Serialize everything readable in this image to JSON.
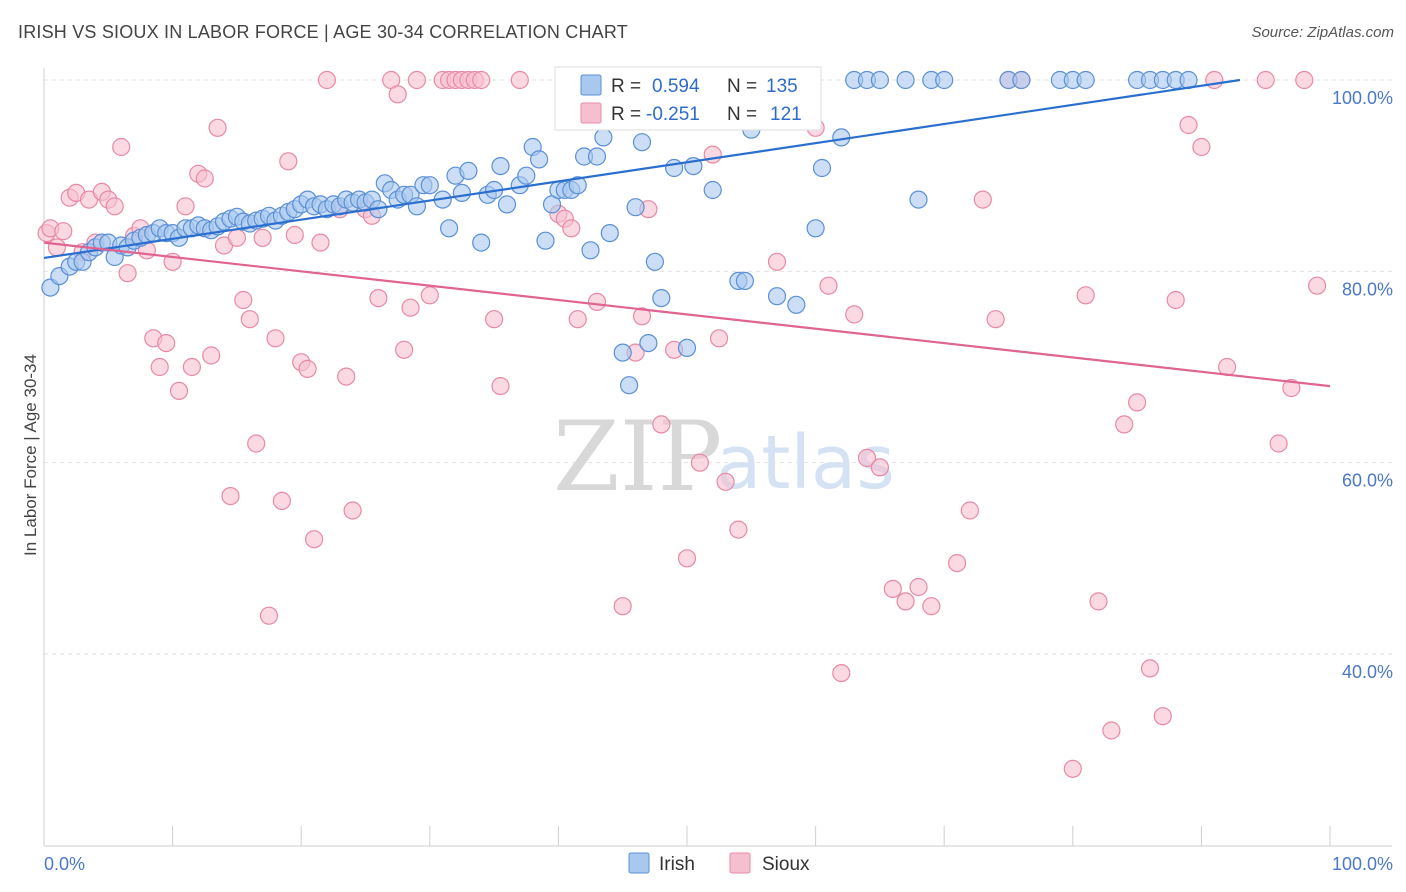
{
  "title": "IRISH VS SIOUX IN LABOR FORCE | AGE 30-34 CORRELATION CHART",
  "source": "Source: ZipAtlas.com",
  "watermark": {
    "zip": "ZIP",
    "atlas": "atlas"
  },
  "colors": {
    "irish_fill": "#a9c8ef",
    "irish_stroke": "#5b8fd6",
    "irish_line": "#2a6fcf",
    "sioux_fill": "#f6bfd0",
    "sioux_stroke": "#e889a6",
    "sioux_line": "#e0648f",
    "tick_text": "#4a78c8",
    "grid": "#e2e2e2"
  },
  "stats": [
    {
      "r_label": "R =",
      "r_value": "0.594",
      "n_label": "N =",
      "n_value": "135"
    },
    {
      "r_label": "R =",
      "r_value": "-0.251",
      "n_label": "N =",
      "n_value": "121"
    }
  ],
  "chart_data": {
    "type": "scatter",
    "ylabel": "In Labor Force | Age 30-34",
    "xlabel": "",
    "x_tick_labels": [
      "0.0%",
      "100.0%"
    ],
    "y_tick_labels": [
      "100.0%",
      "80.0%",
      "60.0%",
      "40.0%"
    ],
    "xlim": [
      0,
      100
    ],
    "ylim": [
      20,
      101.5
    ],
    "grid": true,
    "legend_placement": "bottom-center",
    "series": [
      {
        "name": "Irish",
        "trend": [
          [
            0,
            81.4
          ],
          [
            93,
            100
          ]
        ],
        "points": [
          [
            0.5,
            78.3
          ],
          [
            1.2,
            79.5
          ],
          [
            2,
            80.5
          ],
          [
            2.5,
            81
          ],
          [
            3,
            81
          ],
          [
            3.5,
            82
          ],
          [
            4,
            82.5
          ],
          [
            4.5,
            83
          ],
          [
            5,
            83
          ],
          [
            5.5,
            81.5
          ],
          [
            6,
            82.7
          ],
          [
            6.5,
            82.5
          ],
          [
            7,
            83.2
          ],
          [
            7.5,
            83.5
          ],
          [
            8,
            83.8
          ],
          [
            8.5,
            84
          ],
          [
            9,
            84.5
          ],
          [
            9.5,
            84
          ],
          [
            10,
            84
          ],
          [
            10.5,
            83.5
          ],
          [
            11,
            84.5
          ],
          [
            11.5,
            84.5
          ],
          [
            12,
            84.8
          ],
          [
            12.5,
            84.5
          ],
          [
            13,
            84.3
          ],
          [
            13.5,
            84.7
          ],
          [
            14,
            85.2
          ],
          [
            14.5,
            85.5
          ],
          [
            15,
            85.7
          ],
          [
            15.5,
            85.2
          ],
          [
            16,
            85
          ],
          [
            16.5,
            85.3
          ],
          [
            17,
            85.5
          ],
          [
            17.5,
            85.8
          ],
          [
            18,
            85.3
          ],
          [
            18.5,
            85.8
          ],
          [
            19,
            86.2
          ],
          [
            19.5,
            86.5
          ],
          [
            20,
            87
          ],
          [
            20.5,
            87.5
          ],
          [
            21,
            86.8
          ],
          [
            21.5,
            87
          ],
          [
            22,
            86.5
          ],
          [
            22.5,
            87
          ],
          [
            23,
            86.8
          ],
          [
            23.5,
            87.5
          ],
          [
            24,
            87.2
          ],
          [
            24.5,
            87.5
          ],
          [
            25,
            87.2
          ],
          [
            25.5,
            87.5
          ],
          [
            26,
            86.5
          ],
          [
            26.5,
            89.2
          ],
          [
            27,
            88.5
          ],
          [
            27.5,
            87.5
          ],
          [
            28,
            88
          ],
          [
            28.5,
            88
          ],
          [
            29,
            86.8
          ],
          [
            29.5,
            89
          ],
          [
            30,
            89
          ],
          [
            31,
            87.5
          ],
          [
            31.5,
            84.5
          ],
          [
            32,
            90
          ],
          [
            32.5,
            88.2
          ],
          [
            33,
            90.5
          ],
          [
            34,
            83
          ],
          [
            34.5,
            88
          ],
          [
            35,
            88.5
          ],
          [
            35.5,
            91
          ],
          [
            36,
            87
          ],
          [
            37,
            89
          ],
          [
            37.5,
            90
          ],
          [
            38,
            93
          ],
          [
            38.5,
            91.7
          ],
          [
            39,
            83.2
          ],
          [
            39.5,
            87
          ],
          [
            40,
            88.5
          ],
          [
            40.5,
            88.5
          ],
          [
            41,
            88.5
          ],
          [
            41.5,
            89
          ],
          [
            42,
            92
          ],
          [
            42.5,
            82.2
          ],
          [
            43,
            92
          ],
          [
            43.5,
            94
          ],
          [
            44,
            84
          ],
          [
            45,
            71.5
          ],
          [
            45.5,
            68.1
          ],
          [
            46,
            86.7
          ],
          [
            46.5,
            93.5
          ],
          [
            47,
            72.5
          ],
          [
            47.5,
            81
          ],
          [
            48,
            77.2
          ],
          [
            49,
            90.8
          ],
          [
            50,
            72
          ],
          [
            50.5,
            91
          ],
          [
            52,
            88.5
          ],
          [
            54,
            79
          ],
          [
            54.5,
            79
          ],
          [
            55,
            94.8
          ],
          [
            57,
            77.4
          ],
          [
            58.5,
            76.5
          ],
          [
            60,
            84.5
          ],
          [
            60.5,
            90.8
          ],
          [
            62,
            94
          ],
          [
            63,
            100
          ],
          [
            64,
            100
          ],
          [
            65,
            100
          ],
          [
            67,
            100
          ],
          [
            68,
            87.5
          ],
          [
            69,
            100
          ],
          [
            70,
            100
          ],
          [
            75,
            100
          ],
          [
            76,
            100
          ],
          [
            79,
            100
          ],
          [
            80,
            100
          ],
          [
            81,
            100
          ],
          [
            85,
            100
          ],
          [
            86,
            100
          ],
          [
            87,
            100
          ],
          [
            88,
            100
          ],
          [
            89,
            100
          ]
        ]
      },
      {
        "name": "Sioux",
        "trend": [
          [
            0,
            83
          ],
          [
            100,
            68
          ]
        ],
        "points": [
          [
            0.2,
            84
          ],
          [
            0.5,
            84.5
          ],
          [
            1,
            82.5
          ],
          [
            1.5,
            84.2
          ],
          [
            2,
            87.7
          ],
          [
            2.5,
            88.2
          ],
          [
            3,
            82
          ],
          [
            3.5,
            87.5
          ],
          [
            4,
            83
          ],
          [
            4.5,
            88.3
          ],
          [
            5,
            87.5
          ],
          [
            5.5,
            86.8
          ],
          [
            6,
            93
          ],
          [
            6.5,
            79.8
          ],
          [
            7,
            83.7
          ],
          [
            7.5,
            84.5
          ],
          [
            8,
            82.2
          ],
          [
            8.5,
            73
          ],
          [
            9,
            70
          ],
          [
            9.5,
            72.5
          ],
          [
            10,
            81
          ],
          [
            10.5,
            67.5
          ],
          [
            11,
            86.8
          ],
          [
            11.5,
            70
          ],
          [
            12,
            90.2
          ],
          [
            12.5,
            89.7
          ],
          [
            13,
            71.2
          ],
          [
            13.5,
            95
          ],
          [
            14,
            82.7
          ],
          [
            14.5,
            56.5
          ],
          [
            15,
            83.5
          ],
          [
            15.5,
            77
          ],
          [
            16,
            75
          ],
          [
            16.5,
            62
          ],
          [
            17,
            83.5
          ],
          [
            17.5,
            44
          ],
          [
            18,
            73
          ],
          [
            18.5,
            56
          ],
          [
            19,
            91.5
          ],
          [
            19.5,
            83.8
          ],
          [
            20,
            70.5
          ],
          [
            20.5,
            69.8
          ],
          [
            21,
            52
          ],
          [
            21.5,
            83
          ],
          [
            22,
            100
          ],
          [
            23,
            86.5
          ],
          [
            23.5,
            69
          ],
          [
            24,
            55
          ],
          [
            25,
            86.5
          ],
          [
            25.5,
            85.8
          ],
          [
            26,
            77.2
          ],
          [
            27,
            100
          ],
          [
            27.5,
            98.5
          ],
          [
            28,
            71.8
          ],
          [
            28.5,
            76.2
          ],
          [
            29,
            100
          ],
          [
            30,
            77.5
          ],
          [
            31,
            100
          ],
          [
            31.5,
            100
          ],
          [
            32,
            100
          ],
          [
            32.5,
            100
          ],
          [
            33,
            100
          ],
          [
            33.5,
            100
          ],
          [
            34,
            100
          ],
          [
            35,
            75
          ],
          [
            35.5,
            68
          ],
          [
            37,
            100
          ],
          [
            40,
            86
          ],
          [
            40.5,
            85.5
          ],
          [
            41,
            84.5
          ],
          [
            41.5,
            75
          ],
          [
            43,
            76.8
          ],
          [
            44,
            100
          ],
          [
            45,
            45
          ],
          [
            46,
            71.5
          ],
          [
            46.5,
            75.3
          ],
          [
            47,
            86.5
          ],
          [
            48,
            64
          ],
          [
            49,
            71.8
          ],
          [
            50,
            50
          ],
          [
            51,
            60
          ],
          [
            52,
            92.2
          ],
          [
            52.5,
            73
          ],
          [
            53,
            58
          ],
          [
            54,
            53
          ],
          [
            55,
            100
          ],
          [
            56,
            100
          ],
          [
            57,
            81
          ],
          [
            58,
            100
          ],
          [
            60,
            95
          ],
          [
            61,
            78.5
          ],
          [
            62,
            38
          ],
          [
            63,
            75.5
          ],
          [
            64,
            60.5
          ],
          [
            65,
            59.5
          ],
          [
            66,
            46.8
          ],
          [
            67,
            45.5
          ],
          [
            68,
            47
          ],
          [
            69,
            45
          ],
          [
            71,
            49.5
          ],
          [
            72,
            55
          ],
          [
            73,
            87.5
          ],
          [
            74,
            75
          ],
          [
            75,
            100
          ],
          [
            76,
            100
          ],
          [
            80,
            28
          ],
          [
            81,
            77.5
          ],
          [
            82,
            45.5
          ],
          [
            83,
            32
          ],
          [
            84,
            64
          ],
          [
            85,
            66.3
          ],
          [
            86,
            38.5
          ],
          [
            87,
            33.5
          ],
          [
            88,
            77
          ],
          [
            89,
            95.3
          ],
          [
            90,
            93
          ],
          [
            91,
            100
          ],
          [
            92,
            70
          ],
          [
            95,
            100
          ],
          [
            96,
            62
          ],
          [
            97,
            67.8
          ],
          [
            98,
            100
          ],
          [
            99,
            78.5
          ]
        ]
      }
    ]
  },
  "legend": [
    {
      "label": "Irish"
    },
    {
      "label": "Sioux"
    }
  ]
}
